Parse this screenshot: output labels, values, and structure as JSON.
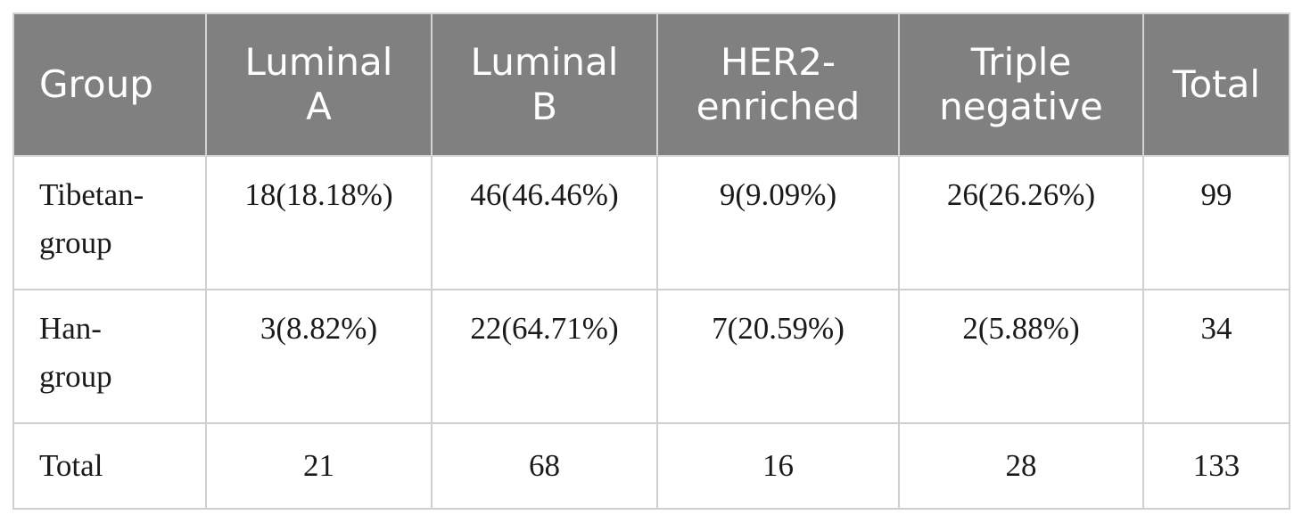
{
  "table": {
    "headers": [
      "Group",
      "Luminal A",
      "Luminal B",
      "HER2-enriched",
      "Triple negative",
      "Total"
    ],
    "rows": [
      {
        "group_line1": "Tibetan-",
        "group_line2": "group",
        "cells": [
          "18(18.18%)",
          "46(46.46%)",
          "9(9.09%)",
          "26(26.26%)",
          "99"
        ]
      },
      {
        "group_line1": "Han-",
        "group_line2": "group",
        "cells": [
          "3(8.82%)",
          "22(64.71%)",
          "7(20.59%)",
          "2(5.88%)",
          "34"
        ]
      },
      {
        "group_line1": "Total",
        "cells": [
          "21",
          "68",
          "16",
          "28",
          "133"
        ]
      }
    ],
    "colors": {
      "header_background": "#808080",
      "header_text": "#ffffff",
      "border": "#cfcfcf",
      "body_text": "#1a1a1a"
    }
  }
}
